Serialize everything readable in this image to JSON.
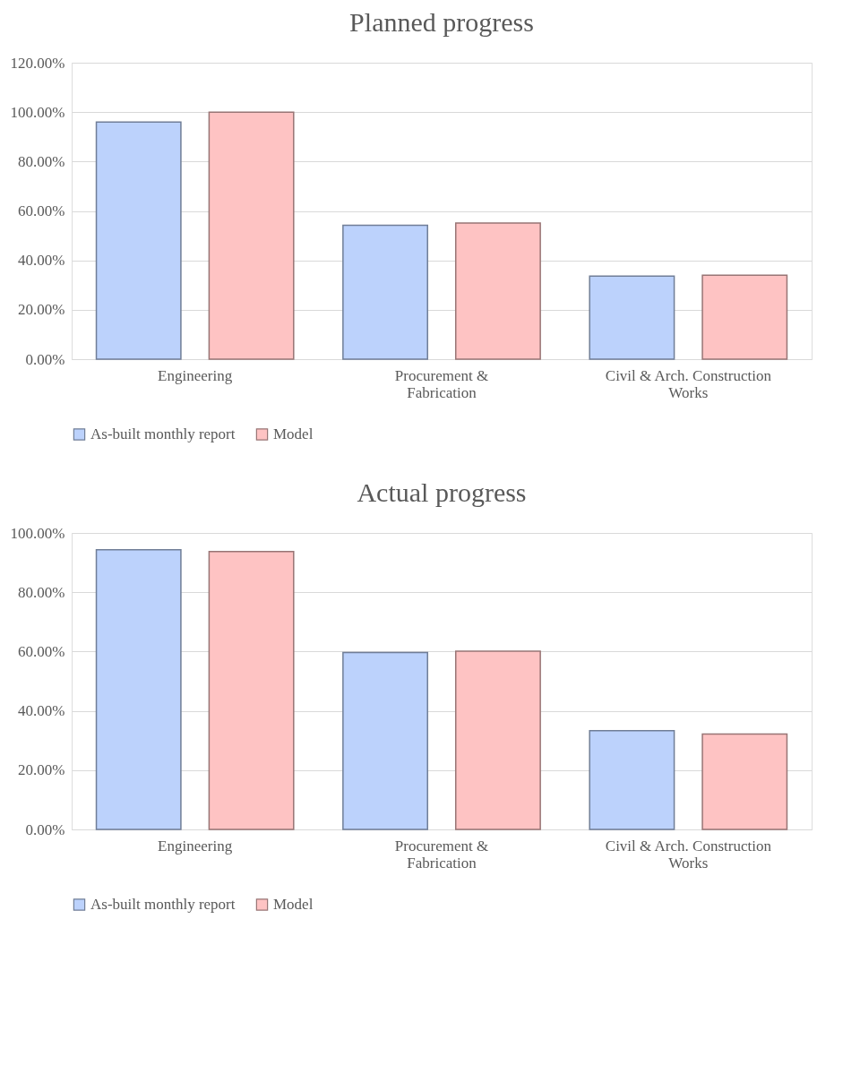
{
  "chart_data": [
    {
      "type": "bar",
      "title": "Planned progress",
      "categories": [
        "Engineering",
        "Procurement  &\nFabrication",
        "Civil & Arch. Construction\nWorks"
      ],
      "series": [
        {
          "name": "As-built monthly report",
          "color": "#bcd2fc",
          "values": [
            96.0,
            54.2,
            33.6
          ]
        },
        {
          "name": "Model",
          "color": "#fec3c3",
          "values": [
            100.0,
            55.1,
            34.0
          ]
        }
      ],
      "ylim": [
        0,
        120
      ],
      "yticks": [
        {
          "value": 0,
          "label": "0.00%"
        },
        {
          "value": 20,
          "label": "20.00%"
        },
        {
          "value": 40,
          "label": "40.00%"
        },
        {
          "value": 60,
          "label": "60.00%"
        },
        {
          "value": 80,
          "label": "80.00%"
        },
        {
          "value": 100,
          "label": "100.00%"
        },
        {
          "value": 120,
          "label": "120.00%"
        }
      ],
      "grid": "y",
      "legend": "bottom"
    },
    {
      "type": "bar",
      "title": "Actual progress",
      "categories": [
        "Engineering",
        "Procurement  &\nFabrication",
        "Civil & Arch. Construction\nWorks"
      ],
      "series": [
        {
          "name": "As-built monthly report",
          "color": "#bcd2fc",
          "values": [
            94.3,
            59.7,
            33.3
          ]
        },
        {
          "name": "Model",
          "color": "#fec3c3",
          "values": [
            93.7,
            60.1,
            32.2
          ]
        }
      ],
      "ylim": [
        0,
        100
      ],
      "yticks": [
        {
          "value": 0,
          "label": "0.00%"
        },
        {
          "value": 20,
          "label": "20.00%"
        },
        {
          "value": 40,
          "label": "40.00%"
        },
        {
          "value": 60,
          "label": "60.00%"
        },
        {
          "value": 80,
          "label": "80.00%"
        },
        {
          "value": 100,
          "label": "100.00%"
        }
      ],
      "grid": "y",
      "legend": "bottom"
    }
  ]
}
